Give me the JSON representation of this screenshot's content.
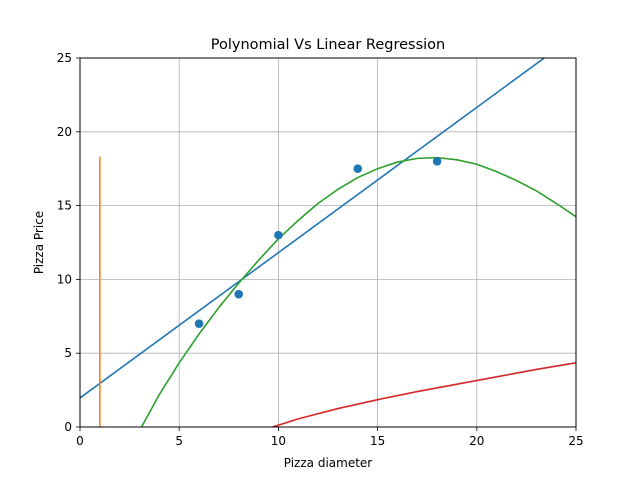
{
  "chart_data": {
    "type": "line",
    "title": "Polynomial Vs Linear Regression",
    "xlabel": "Pizza diameter",
    "ylabel": "Pizza Price",
    "xlim": [
      0,
      25
    ],
    "ylim": [
      0,
      25
    ],
    "xticks": [
      0,
      5,
      10,
      15,
      20,
      25
    ],
    "yticks": [
      0,
      5,
      10,
      15,
      20,
      25
    ],
    "grid": true,
    "colors": {
      "scatter": "#1f77b4",
      "linear": "#1f77b4",
      "vertical": "#ff7f0e",
      "quadratic": "#2ca02c",
      "lower_curve": "#d62728"
    },
    "series": [
      {
        "kind": "scatter",
        "points": [
          [
            6,
            7
          ],
          [
            8,
            9
          ],
          [
            10,
            13
          ],
          [
            14,
            17.5
          ],
          [
            18,
            18
          ]
        ]
      },
      {
        "kind": "line",
        "points": [
          [
            0,
            1.97
          ],
          [
            23.4,
            25
          ]
        ]
      },
      {
        "kind": "line",
        "points": [
          [
            1,
            0
          ],
          [
            1,
            18.3
          ]
        ]
      },
      {
        "kind": "line",
        "points": [
          [
            3.1,
            0
          ],
          [
            4,
            2.2
          ],
          [
            5,
            4.35
          ],
          [
            6,
            6.3
          ],
          [
            7,
            8.1
          ],
          [
            8,
            9.75
          ],
          [
            9,
            11.3
          ],
          [
            10,
            12.75
          ],
          [
            11,
            14.0
          ],
          [
            12,
            15.15
          ],
          [
            13,
            16.1
          ],
          [
            14,
            16.9
          ],
          [
            15,
            17.5
          ],
          [
            16,
            17.95
          ],
          [
            17,
            18.2
          ],
          [
            18,
            18.25
          ],
          [
            19,
            18.1
          ],
          [
            20,
            17.8
          ],
          [
            21,
            17.3
          ],
          [
            22,
            16.7
          ],
          [
            23,
            16.0
          ],
          [
            24,
            15.15
          ],
          [
            25,
            14.25
          ]
        ]
      },
      {
        "kind": "line",
        "points": [
          [
            9.7,
            0
          ],
          [
            11,
            0.55
          ],
          [
            13,
            1.25
          ],
          [
            15,
            1.85
          ],
          [
            17,
            2.4
          ],
          [
            19,
            2.9
          ],
          [
            21,
            3.4
          ],
          [
            23,
            3.9
          ],
          [
            25,
            4.35
          ]
        ]
      }
    ]
  }
}
